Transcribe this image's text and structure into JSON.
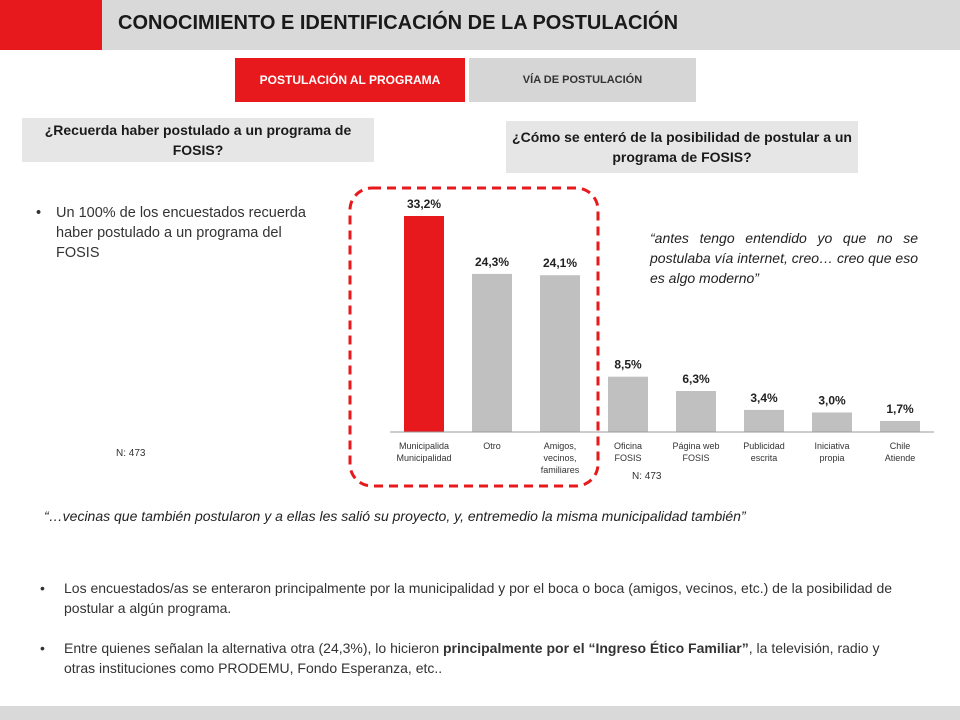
{
  "title": "CONOCIMIENTO E IDENTIFICACIÓN DE LA POSTULACIÓN",
  "tabs": [
    {
      "label": "POSTULACIÓN AL PROGRAMA",
      "active": true
    },
    {
      "label": "VÍA DE POSTULACIÓN",
      "active": false
    }
  ],
  "colors": {
    "accent": "#e8191c",
    "bar_gray": "#c0c0c0",
    "panel_gray": "#e6e6e6"
  },
  "left": {
    "question": "¿Recuerda haber postulado a un programa de FOSIS?",
    "bullet": "Un 100% de los encuestados recuerda haber postulado a un programa del FOSIS",
    "n": "N: 473"
  },
  "right": {
    "question": "¿Cómo se enteró de la posibilidad de postular a un programa de FOSIS?",
    "quote": "“antes tengo entendido yo que no se postulaba vía internet, creo… creo que eso es algo moderno”",
    "n": "N: 473"
  },
  "chart_data": {
    "type": "bar",
    "categories": [
      "Municipalidad",
      "Otro",
      "Amigos, vecinos, familiares",
      "Oficina FOSIS",
      "Página web FOSIS",
      "Publicidad escrita",
      "Iniciativa propia",
      "Chile Atiende"
    ],
    "values": [
      33.2,
      24.3,
      24.1,
      8.5,
      6.3,
      3.4,
      3.0,
      1.7
    ],
    "value_labels": [
      "33,2%",
      "24,3%",
      "24,1%",
      "8,5%",
      "6,3%",
      "3,4%",
      "3,0%",
      "1,7%"
    ],
    "highlight_index": 0,
    "ylim": [
      0,
      33.2
    ],
    "grid": false,
    "highlight_box_categories": [
      "Municipalidad",
      "Otro",
      "Amigos, vecinos, familiares"
    ]
  },
  "quote_bottom": "“…vecinas que también postularon y a ellas les salió su proyecto, y, entremedio la misma municipalidad también”",
  "bullets_bottom": [
    {
      "text": "Los encuestados/as se enteraron principalmente por la municipalidad y  por el boca o boca (amigos, vecinos, etc.) de la posibilidad de postular a algún programa."
    },
    {
      "before": "Entre quienes señalan la alternativa otra (24,3%), lo hicieron ",
      "bold": "principalmente por el “Ingreso Ético Familiar”",
      "after": ", la televisión,  radio y otras instituciones como PRODEMU, Fondo Esperanza, etc.."
    }
  ]
}
